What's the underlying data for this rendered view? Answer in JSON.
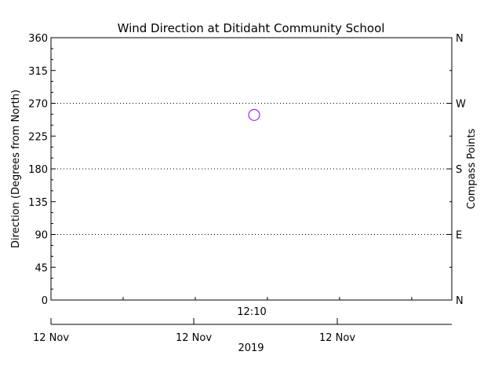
{
  "chart_data": {
    "type": "scatter",
    "title": "Wind Direction at Ditidaht Community School",
    "ylabel": "Direction (Degrees from North)",
    "ylabel_right": "Compass Points",
    "ylim": [
      0,
      360
    ],
    "y_ticks": [
      0,
      45,
      90,
      135,
      180,
      225,
      270,
      315,
      360
    ],
    "compass_ticks": [
      {
        "value": 0,
        "label": "N"
      },
      {
        "value": 90,
        "label": "E"
      },
      {
        "value": 180,
        "label": "S"
      },
      {
        "value": 270,
        "label": "W"
      },
      {
        "value": 360,
        "label": "N"
      }
    ],
    "grid_lines_at": [
      90,
      180,
      270
    ],
    "time_label": "12:10",
    "date_ticks": [
      "12 Nov",
      "12 Nov",
      "12 Nov"
    ],
    "year_label": "2019",
    "points": [
      {
        "time": "12:10",
        "direction": 254
      }
    ],
    "colors": {
      "marker": "#9000ff",
      "axis": "#000000",
      "grid": "#000000"
    }
  }
}
